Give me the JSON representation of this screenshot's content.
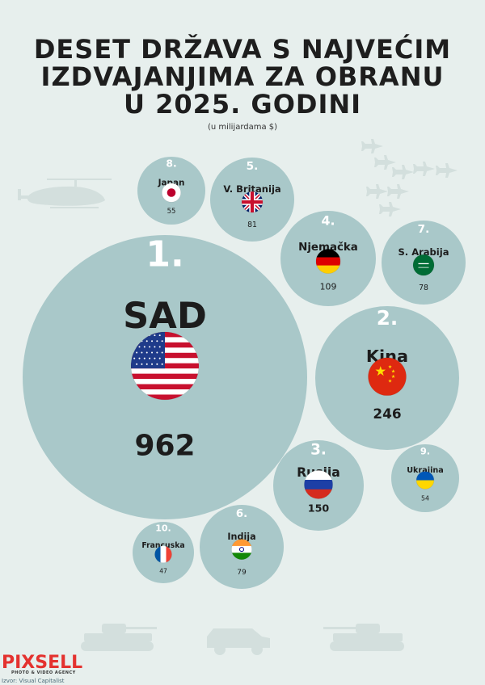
{
  "title_lines": [
    "DESET DRŽAVA S NAJVEĆIM",
    "IZDVAJANJIMA ZA OBRANU",
    "U 2025. GODINI"
  ],
  "subtitle": "(u milijardama $)",
  "brand": "PIXSELL",
  "brand_tagline": "PHOTO & VIDEO AGENCY",
  "source": "Izvor: Visual Capitalist",
  "colors": {
    "background": "#e7efed",
    "bubble": "#a9c8c9",
    "brand": "#e4322f",
    "text": "#1c1c1c",
    "rank_text": "#ffffff"
  },
  "chart_data": {
    "type": "bubble",
    "unit": "milijarde $",
    "items": [
      {
        "rank": "1.",
        "country": "SAD",
        "value": 962,
        "flag": "flag-us-icon"
      },
      {
        "rank": "2.",
        "country": "Kina",
        "value": 246,
        "flag": "flag-cn-icon"
      },
      {
        "rank": "3.",
        "country": "Rusija",
        "value": 150,
        "flag": "flag-ru-icon"
      },
      {
        "rank": "4.",
        "country": "Njemačka",
        "value": 109,
        "flag": "flag-de-icon"
      },
      {
        "rank": "5.",
        "country": "V. Britanija",
        "value": 81,
        "flag": "flag-gb-icon"
      },
      {
        "rank": "6.",
        "country": "Indija",
        "value": 79,
        "flag": "flag-in-icon"
      },
      {
        "rank": "7.",
        "country": "S. Arabija",
        "value": 78,
        "flag": "flag-sa-icon"
      },
      {
        "rank": "8.",
        "country": "Japan",
        "value": 55,
        "flag": "flag-jp-icon"
      },
      {
        "rank": "9.",
        "country": "Ukrajina",
        "value": 54,
        "flag": "flag-ua-icon"
      },
      {
        "rank": "10.",
        "country": "Francuska",
        "value": 47,
        "flag": "flag-fr-icon"
      }
    ]
  }
}
